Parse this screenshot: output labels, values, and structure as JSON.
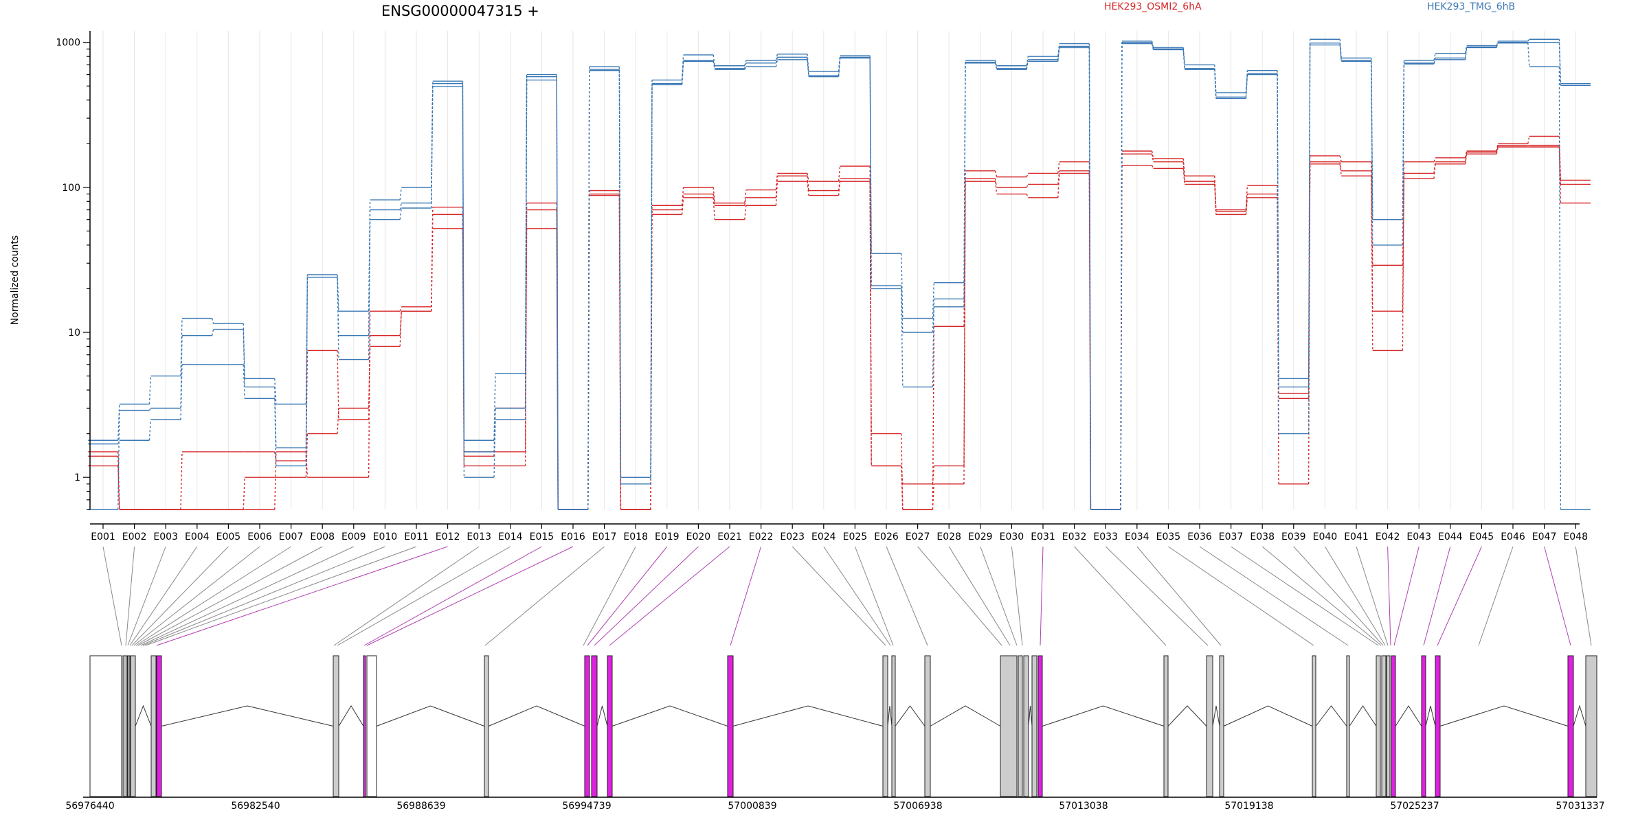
{
  "chart_data": {
    "type": "line",
    "title": "ENSG00000047315 +",
    "ylabel": "Normalized counts",
    "ylim": [
      0.6,
      1200
    ],
    "yscale": "log",
    "yticks": [
      1,
      10,
      100,
      1000
    ],
    "ytick_labels": [
      "1",
      "10",
      "100",
      "1000"
    ],
    "categories": [
      "E001",
      "E002",
      "E003",
      "E004",
      "E005",
      "E006",
      "E007",
      "E008",
      "E009",
      "E010",
      "E011",
      "E012",
      "E013",
      "E014",
      "E015",
      "E016",
      "E017",
      "E018",
      "E019",
      "E020",
      "E021",
      "E022",
      "E023",
      "E024",
      "E025",
      "E026",
      "E027",
      "E028",
      "E029",
      "E030",
      "E031",
      "E032",
      "E033",
      "E034",
      "E035",
      "E036",
      "E037",
      "E038",
      "E039",
      "E040",
      "E041",
      "E042",
      "E043",
      "E044",
      "E045",
      "E046",
      "E047",
      "E048"
    ],
    "series": [
      {
        "name": "HEK293_OSMI2_6hA",
        "color": "#d62728",
        "values": [
          1.5,
          0.6,
          0.6,
          0.6,
          0.6,
          0.6,
          1.5,
          1.0,
          1.0,
          14,
          15,
          73,
          1.5,
          1.5,
          78,
          0.6,
          95,
          0.6,
          75,
          100,
          78,
          96,
          125,
          110,
          140,
          2.0,
          0.6,
          0.9,
          130,
          118,
          125,
          150,
          0.6,
          178,
          158,
          120,
          70,
          103,
          0.9,
          165,
          150,
          7.5,
          150,
          160,
          178,
          200,
          225,
          112
        ]
      },
      {
        "name": "HEK293_OSMI2_6hA",
        "color": "#d62728",
        "values": [
          1.4,
          0.6,
          0.6,
          1.5,
          1.5,
          1.5,
          1.3,
          7.5,
          2.5,
          9.5,
          14,
          65,
          1.4,
          3.0,
          70,
          0.6,
          90,
          0.6,
          70,
          90,
          75,
          85,
          120,
          95,
          115,
          1.2,
          0.9,
          1.2,
          115,
          100,
          105,
          130,
          0.6,
          170,
          150,
          110,
          68,
          90,
          3.8,
          150,
          130,
          14,
          125,
          150,
          175,
          195,
          195,
          105
        ]
      },
      {
        "name": "HEK293_OSMI2_6hA",
        "color": "#d62728",
        "values": [
          1.2,
          0.6,
          0.6,
          0.6,
          0.6,
          1.0,
          1.0,
          2.0,
          3.0,
          8.0,
          14,
          52,
          1.2,
          1.2,
          52,
          0.6,
          88,
          0.6,
          65,
          85,
          60,
          75,
          110,
          88,
          110,
          1.2,
          0.6,
          11,
          110,
          90,
          85,
          125,
          0.6,
          142,
          135,
          105,
          65,
          85,
          3.5,
          145,
          120,
          29,
          115,
          145,
          170,
          190,
          190,
          78
        ]
      },
      {
        "name": "HEK293_TMG_6hB",
        "color": "#3a78b5",
        "values": [
          1.8,
          3.2,
          5.0,
          12.5,
          11.5,
          4.8,
          3.2,
          25,
          14,
          82,
          100,
          540,
          1.8,
          5.2,
          600,
          0.6,
          680,
          1.0,
          550,
          820,
          690,
          750,
          830,
          630,
          810,
          35,
          12.5,
          22,
          750,
          690,
          800,
          980,
          0.6,
          1020,
          920,
          700,
          450,
          640,
          4.8,
          1050,
          780,
          60,
          750,
          840,
          950,
          1020,
          1050,
          520
        ]
      },
      {
        "name": "HEK293_TMG_6hB",
        "color": "#3a78b5",
        "values": [
          0.6,
          2.9,
          3.0,
          9.5,
          10.5,
          4.2,
          1.6,
          24,
          9.5,
          70,
          78,
          520,
          1.5,
          3.0,
          580,
          0.6,
          650,
          0.9,
          520,
          750,
          660,
          720,
          790,
          590,
          790,
          20,
          4.2,
          17,
          720,
          660,
          760,
          940,
          0.6,
          1000,
          900,
          660,
          410,
          610,
          4.2,
          990,
          750,
          40,
          710,
          780,
          930,
          1000,
          1000,
          505
        ]
      },
      {
        "name": "HEK293_TMG_6hB",
        "color": "#3a78b5",
        "values": [
          1.7,
          1.8,
          2.5,
          6.0,
          6.0,
          3.5,
          1.2,
          24,
          6.5,
          60,
          72,
          495,
          1.0,
          2.5,
          550,
          0.6,
          640,
          1.0,
          510,
          740,
          650,
          680,
          760,
          580,
          780,
          21,
          10,
          15,
          730,
          650,
          740,
          920,
          0.6,
          980,
          890,
          650,
          420,
          600,
          2.0,
          960,
          740,
          60,
          720,
          760,
          920,
          990,
          680,
          0.6
        ]
      }
    ],
    "gene_model": {
      "coordinate_ticks": [
        "56976440",
        "56982540",
        "56988639",
        "56994739",
        "57000839",
        "57006938",
        "57013038",
        "57019138",
        "57025237",
        "57031337"
      ]
    },
    "legend": {
      "placement": "top",
      "entries": [
        "HEK293_OSMI2_6hA",
        "HEK293_TMG_6hB"
      ]
    }
  }
}
